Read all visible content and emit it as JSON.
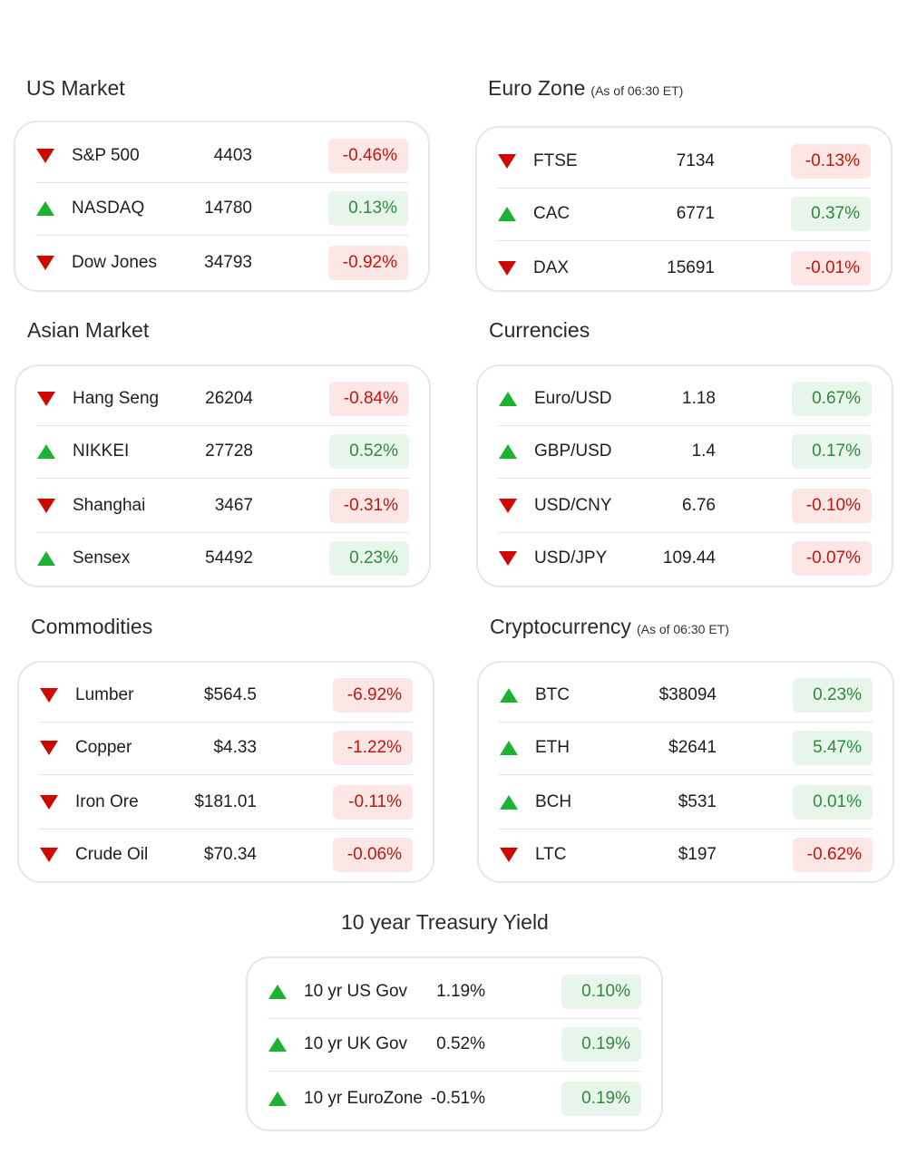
{
  "colors": {
    "up": "#1db233",
    "down": "#cc0a00",
    "pos_bg": "#e7f5ea",
    "neg_bg": "#fde7e6"
  },
  "sections": [
    {
      "id": "us",
      "title": "US Market",
      "subtitle": "",
      "rows": [
        {
          "name": "S&P 500",
          "value": "4403",
          "change": "-0.46%",
          "dir": "down"
        },
        {
          "name": "NASDAQ",
          "value": "14780",
          "change": "0.13%",
          "dir": "up"
        },
        {
          "name": "Dow Jones",
          "value": "34793",
          "change": "-0.92%",
          "dir": "down"
        }
      ]
    },
    {
      "id": "euro",
      "title": "Euro Zone",
      "subtitle": "(As of 06:30 ET)",
      "rows": [
        {
          "name": "FTSE",
          "value": "7134",
          "change": "-0.13%",
          "dir": "down"
        },
        {
          "name": "CAC",
          "value": "6771",
          "change": "0.37%",
          "dir": "up"
        },
        {
          "name": "DAX",
          "value": "15691",
          "change": "-0.01%",
          "dir": "down"
        }
      ]
    },
    {
      "id": "asia",
      "title": "Asian Market",
      "subtitle": "",
      "rows": [
        {
          "name": "Hang Seng",
          "value": "26204",
          "change": "-0.84%",
          "dir": "down"
        },
        {
          "name": "NIKKEI",
          "value": "27728",
          "change": "0.52%",
          "dir": "up"
        },
        {
          "name": "Shanghai",
          "value": "3467",
          "change": "-0.31%",
          "dir": "down"
        },
        {
          "name": "Sensex",
          "value": "54492",
          "change": "0.23%",
          "dir": "up"
        }
      ]
    },
    {
      "id": "fx",
      "title": "Currencies",
      "subtitle": "",
      "rows": [
        {
          "name": "Euro/USD",
          "value": "1.18",
          "change": "0.67%",
          "dir": "up"
        },
        {
          "name": "GBP/USD",
          "value": "1.4",
          "change": "0.17%",
          "dir": "up"
        },
        {
          "name": "USD/CNY",
          "value": "6.76",
          "change": "-0.10%",
          "dir": "down"
        },
        {
          "name": "USD/JPY",
          "value": "109.44",
          "change": "-0.07%",
          "dir": "down"
        }
      ]
    },
    {
      "id": "commod",
      "title": "Commodities",
      "subtitle": "",
      "rows": [
        {
          "name": "Lumber",
          "value": "$564.5",
          "change": "-6.92%",
          "dir": "down"
        },
        {
          "name": "Copper",
          "value": "$4.33",
          "change": "-1.22%",
          "dir": "down"
        },
        {
          "name": "Iron Ore",
          "value": "$181.01",
          "change": "-0.11%",
          "dir": "down"
        },
        {
          "name": "Crude Oil",
          "value": "$70.34",
          "change": "-0.06%",
          "dir": "down"
        }
      ]
    },
    {
      "id": "crypto",
      "title": "Cryptocurrency",
      "subtitle": "(As of 06:30 ET)",
      "rows": [
        {
          "name": "BTC",
          "value": "$38094",
          "change": "0.23%",
          "dir": "up"
        },
        {
          "name": "ETH",
          "value": "$2641",
          "change": "5.47%",
          "dir": "up"
        },
        {
          "name": "BCH",
          "value": "$531",
          "change": "0.01%",
          "dir": "up"
        },
        {
          "name": "LTC",
          "value": "$197",
          "change": "-0.62%",
          "dir": "down"
        }
      ]
    },
    {
      "id": "treasury",
      "title": "10 year Treasury Yield",
      "subtitle": "",
      "rows": [
        {
          "name": "10 yr US Gov",
          "value": "1.19%",
          "change": "0.10%",
          "dir": "up"
        },
        {
          "name": "10 yr UK Gov",
          "value": "0.52%",
          "change": "0.19%",
          "dir": "up"
        },
        {
          "name": "10 yr EuroZone",
          "value": "-0.51%",
          "change": "0.19%",
          "dir": "up"
        }
      ]
    }
  ]
}
